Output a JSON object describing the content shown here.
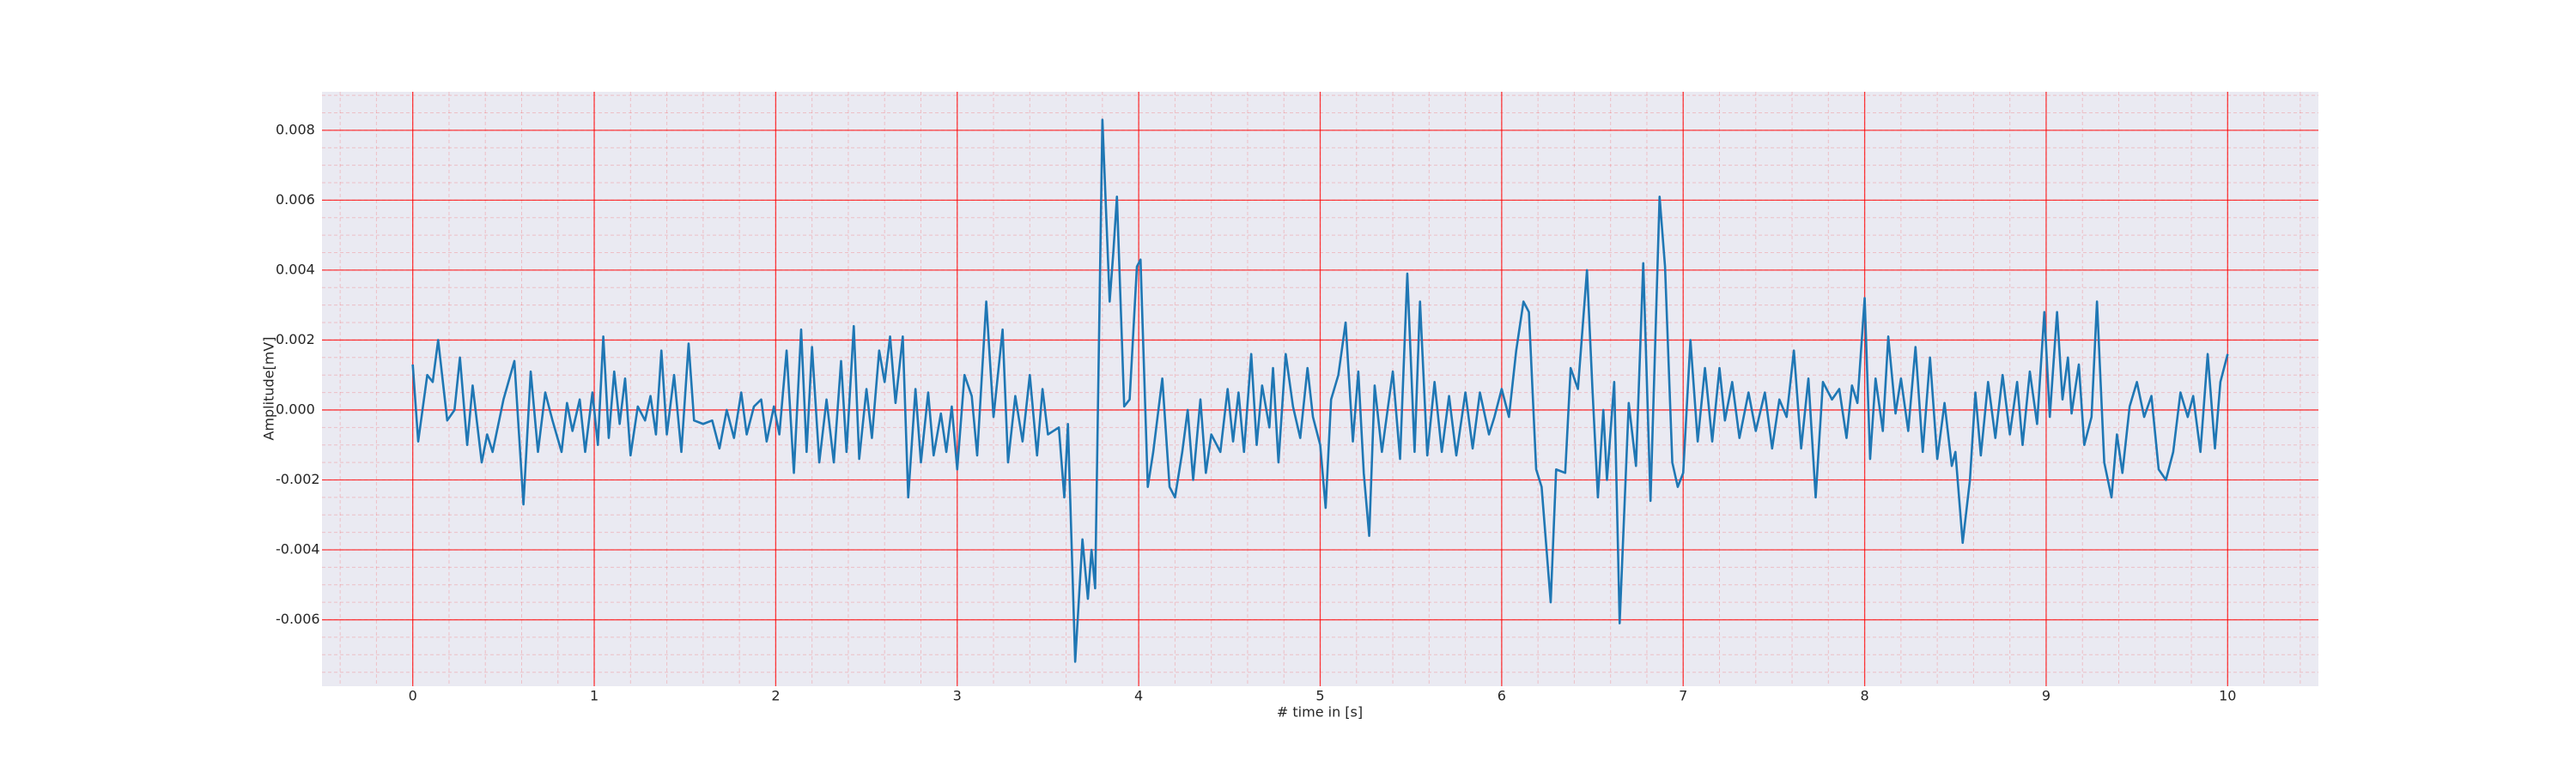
{
  "chart_data": {
    "type": "line",
    "xlabel": "# time in [s]",
    "ylabel": "Amplitude[mV]",
    "xlim": [
      -0.5,
      10.5
    ],
    "ylim": [
      -0.0079,
      0.0091
    ],
    "xticks": [
      0,
      1,
      2,
      3,
      4,
      5,
      6,
      7,
      8,
      9,
      10
    ],
    "yticks": [
      -0.006,
      -0.004,
      -0.002,
      {
        "value": 0,
        "label": "0.000"
      },
      0.002,
      0.004,
      0.006,
      0.008
    ],
    "grid": true,
    "minor_grid": true,
    "grid_color": "#ff0000",
    "background": "#eaeaf2",
    "series": [
      {
        "color": "#1f77b4",
        "x": [
          0.0,
          0.03,
          0.08,
          0.11,
          0.14,
          0.19,
          0.23,
          0.26,
          0.3,
          0.33,
          0.38,
          0.41,
          0.44,
          0.5,
          0.56,
          0.61,
          0.65,
          0.69,
          0.73,
          0.77,
          0.82,
          0.85,
          0.88,
          0.92,
          0.95,
          0.99,
          1.02,
          1.05,
          1.08,
          1.11,
          1.14,
          1.17,
          1.2,
          1.24,
          1.28,
          1.31,
          1.34,
          1.37,
          1.4,
          1.44,
          1.48,
          1.52,
          1.55,
          1.6,
          1.65,
          1.69,
          1.73,
          1.77,
          1.81,
          1.84,
          1.88,
          1.92,
          1.95,
          1.99,
          2.02,
          2.06,
          2.1,
          2.14,
          2.17,
          2.2,
          2.24,
          2.28,
          2.32,
          2.36,
          2.39,
          2.43,
          2.46,
          2.5,
          2.53,
          2.57,
          2.6,
          2.63,
          2.66,
          2.7,
          2.73,
          2.77,
          2.8,
          2.84,
          2.87,
          2.91,
          2.94,
          2.97,
          3.0,
          3.04,
          3.08,
          3.11,
          3.16,
          3.2,
          3.25,
          3.28,
          3.32,
          3.36,
          3.4,
          3.44,
          3.47,
          3.5,
          3.56,
          3.59,
          3.61,
          3.65,
          3.69,
          3.72,
          3.74,
          3.76,
          3.8,
          3.84,
          3.86,
          3.88,
          3.92,
          3.95,
          3.99,
          4.01,
          4.05,
          4.08,
          4.13,
          4.17,
          4.2,
          4.24,
          4.27,
          4.3,
          4.34,
          4.37,
          4.4,
          4.45,
          4.49,
          4.52,
          4.55,
          4.58,
          4.62,
          4.65,
          4.68,
          4.72,
          4.74,
          4.77,
          4.81,
          4.85,
          4.89,
          4.93,
          4.96,
          5.0,
          5.03,
          5.06,
          5.1,
          5.14,
          5.18,
          5.21,
          5.24,
          5.27,
          5.3,
          5.34,
          5.4,
          5.44,
          5.48,
          5.52,
          5.55,
          5.59,
          5.63,
          5.67,
          5.71,
          5.75,
          5.8,
          5.84,
          5.88,
          5.93,
          5.96,
          6.0,
          6.04,
          6.08,
          6.12,
          6.15,
          6.19,
          6.22,
          6.27,
          6.3,
          6.35,
          6.38,
          6.42,
          6.47,
          6.5,
          6.53,
          6.56,
          6.58,
          6.62,
          6.65,
          6.7,
          6.74,
          6.78,
          6.82,
          6.87,
          6.9,
          6.94,
          6.97,
          7.0,
          7.04,
          7.08,
          7.12,
          7.16,
          7.2,
          7.23,
          7.27,
          7.31,
          7.36,
          7.4,
          7.45,
          7.49,
          7.53,
          7.57,
          7.61,
          7.65,
          7.69,
          7.73,
          7.77,
          7.82,
          7.86,
          7.9,
          7.93,
          7.96,
          8.0,
          8.03,
          8.06,
          8.1,
          8.13,
          8.17,
          8.2,
          8.24,
          8.28,
          8.32,
          8.36,
          8.4,
          8.44,
          8.48,
          8.5,
          8.54,
          8.58,
          8.61,
          8.64,
          8.68,
          8.72,
          8.76,
          8.8,
          8.84,
          8.87,
          8.91,
          8.95,
          8.99,
          9.02,
          9.06,
          9.09,
          9.12,
          9.14,
          9.18,
          9.21,
          9.25,
          9.28,
          9.32,
          9.36,
          9.39,
          9.42,
          9.46,
          9.5,
          9.54,
          9.58,
          9.62,
          9.66,
          9.7,
          9.74,
          9.78,
          9.81,
          9.85,
          9.89,
          9.93,
          9.96,
          10.0
        ],
        "values": [
          0.0013,
          -0.0009,
          0.001,
          0.0008,
          0.002,
          -0.0003,
          0.0,
          0.0015,
          -0.001,
          0.0007,
          -0.0015,
          -0.0007,
          -0.0012,
          0.0003,
          0.0014,
          -0.0027,
          0.0011,
          -0.0012,
          0.0005,
          -0.0003,
          -0.0012,
          0.0002,
          -0.0006,
          0.0003,
          -0.0012,
          0.0005,
          -0.001,
          0.0021,
          -0.0008,
          0.0011,
          -0.0004,
          0.0009,
          -0.0013,
          0.0001,
          -0.0003,
          0.0004,
          -0.0007,
          0.0017,
          -0.0007,
          0.001,
          -0.0012,
          0.0019,
          -0.0003,
          -0.0004,
          -0.0003,
          -0.0011,
          0.0,
          -0.0008,
          0.0005,
          -0.0007,
          0.0001,
          0.0003,
          -0.0009,
          0.0001,
          -0.0007,
          0.0017,
          -0.0018,
          0.0023,
          -0.0012,
          0.0018,
          -0.0015,
          0.0003,
          -0.0015,
          0.0014,
          -0.0012,
          0.0024,
          -0.0014,
          0.0006,
          -0.0008,
          0.0017,
          0.0008,
          0.0021,
          0.0002,
          0.0021,
          -0.0025,
          0.0006,
          -0.0015,
          0.0005,
          -0.0013,
          -0.0001,
          -0.0012,
          0.0001,
          -0.0017,
          0.001,
          0.0004,
          -0.0013,
          0.0031,
          -0.0002,
          0.0023,
          -0.0015,
          0.0004,
          -0.0009,
          0.001,
          -0.0013,
          0.0006,
          -0.0007,
          -0.0005,
          -0.0025,
          -0.0004,
          -0.0072,
          -0.0037,
          -0.0054,
          -0.004,
          -0.0051,
          0.0083,
          0.0031,
          0.0045,
          0.0061,
          0.0001,
          0.0003,
          0.0041,
          0.0043,
          -0.0022,
          -0.0012,
          0.0009,
          -0.0022,
          -0.0025,
          -0.0012,
          0.0,
          -0.002,
          0.0003,
          -0.0018,
          -0.0007,
          -0.0012,
          0.0006,
          -0.0009,
          0.0005,
          -0.0012,
          0.0016,
          -0.001,
          0.0007,
          -0.0005,
          0.0012,
          -0.0015,
          0.0016,
          0.0001,
          -0.0008,
          0.0012,
          -0.0002,
          -0.001,
          -0.0028,
          0.0003,
          0.001,
          0.0025,
          -0.0009,
          0.0011,
          -0.0018,
          -0.0036,
          0.0007,
          -0.0012,
          0.0011,
          -0.0014,
          0.0039,
          -0.0012,
          0.0031,
          -0.0013,
          0.0008,
          -0.0012,
          0.0004,
          -0.0013,
          0.0005,
          -0.0011,
          0.0005,
          -0.0007,
          -0.0002,
          0.0006,
          -0.0002,
          0.0017,
          0.0031,
          0.0028,
          -0.0017,
          -0.0022,
          -0.0055,
          -0.0017,
          -0.0018,
          0.0012,
          0.0006,
          0.004,
          0.0006,
          -0.0025,
          0.0,
          -0.002,
          0.0008,
          -0.0061,
          0.0002,
          -0.0016,
          0.0042,
          -0.0026,
          0.0061,
          0.0041,
          -0.0015,
          -0.0022,
          -0.0018,
          0.002,
          -0.0009,
          0.0012,
          -0.0009,
          0.0012,
          -0.0003,
          0.0008,
          -0.0008,
          0.0005,
          -0.0006,
          0.0005,
          -0.0011,
          0.0003,
          -0.0002,
          0.0017,
          -0.0011,
          0.0009,
          -0.0025,
          0.0008,
          0.0003,
          0.0006,
          -0.0008,
          0.0007,
          0.0002,
          0.0032,
          -0.0014,
          0.0009,
          -0.0006,
          0.0021,
          -0.0001,
          0.0009,
          -0.0006,
          0.0018,
          -0.0012,
          0.0015,
          -0.0014,
          0.0002,
          -0.0016,
          -0.0012,
          -0.0038,
          -0.002,
          0.0005,
          -0.0013,
          0.0008,
          -0.0008,
          0.001,
          -0.0007,
          0.0008,
          -0.001,
          0.0011,
          -0.0004,
          0.0028,
          -0.0002,
          0.0028,
          0.0003,
          0.0015,
          -0.0001,
          0.0013,
          -0.001,
          -0.0002,
          0.0031,
          -0.0015,
          -0.0025,
          -0.0007,
          -0.0018,
          0.0001,
          0.0008,
          -0.0002,
          0.0004,
          -0.0017,
          -0.002,
          -0.0012,
          0.0005,
          -0.0002,
          0.0004,
          -0.0012,
          0.0016,
          -0.0011,
          0.0008,
          0.0016
        ]
      }
    ]
  }
}
